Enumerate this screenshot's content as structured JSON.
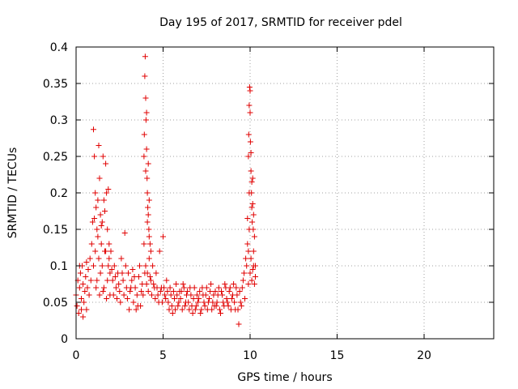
{
  "chart_data": {
    "type": "scatter",
    "title": "Day 195 of 2017, SRMTID for receiver pdel",
    "xlabel": "GPS time / hours",
    "ylabel": "SRMTID / TECUs",
    "xlim": [
      0,
      24
    ],
    "ylim": [
      0,
      0.4
    ],
    "x_ticks": [
      0,
      5,
      10,
      15,
      20
    ],
    "x_tick_labels": [
      "0",
      "5",
      "10",
      "15",
      "20"
    ],
    "y_ticks": [
      0,
      0.05,
      0.1,
      0.15,
      0.2,
      0.25,
      0.3,
      0.35,
      0.4
    ],
    "y_tick_labels": [
      "0",
      "0.05",
      "0.1",
      "0.15",
      "0.2",
      "0.25",
      "0.3",
      "0.35",
      "0.4"
    ],
    "grid": true,
    "marker": "plus",
    "color": "#e00000",
    "series": [
      {
        "name": "SRMTID",
        "points": [
          [
            0.0,
            0.06
          ],
          [
            0.05,
            0.045
          ],
          [
            0.1,
            0.08
          ],
          [
            0.15,
            0.035
          ],
          [
            0.2,
            0.07
          ],
          [
            0.25,
            0.09
          ],
          [
            0.3,
            0.055
          ],
          [
            0.35,
            0.1
          ],
          [
            0.4,
            0.075
          ],
          [
            0.45,
            0.05
          ],
          [
            0.5,
            0.065
          ],
          [
            0.55,
            0.085
          ],
          [
            0.6,
            0.04
          ],
          [
            0.65,
            0.07
          ],
          [
            0.7,
            0.095
          ],
          [
            0.75,
            0.06
          ],
          [
            0.8,
            0.11
          ],
          [
            0.85,
            0.08
          ],
          [
            0.9,
            0.13
          ],
          [
            0.95,
            0.16
          ],
          [
            0.4,
            0.03
          ],
          [
            0.6,
            0.105
          ],
          [
            0.3,
            0.04
          ],
          [
            0.2,
            0.1
          ],
          [
            1.0,
            0.287
          ],
          [
            1.05,
            0.25
          ],
          [
            1.1,
            0.2
          ],
          [
            1.15,
            0.18
          ],
          [
            1.2,
            0.15
          ],
          [
            1.25,
            0.14
          ],
          [
            1.3,
            0.265
          ],
          [
            1.35,
            0.22
          ],
          [
            1.4,
            0.17
          ],
          [
            1.45,
            0.13
          ],
          [
            1.5,
            0.16
          ],
          [
            1.55,
            0.25
          ],
          [
            1.6,
            0.19
          ],
          [
            1.65,
            0.12
          ],
          [
            1.7,
            0.24
          ],
          [
            1.75,
            0.2
          ],
          [
            1.8,
            0.15
          ],
          [
            1.85,
            0.1
          ],
          [
            1.9,
            0.13
          ],
          [
            1.95,
            0.09
          ],
          [
            1.0,
            0.1
          ],
          [
            1.1,
            0.12
          ],
          [
            1.2,
            0.08
          ],
          [
            1.3,
            0.11
          ],
          [
            1.4,
            0.09
          ],
          [
            1.5,
            0.1
          ],
          [
            1.6,
            0.07
          ],
          [
            1.7,
            0.12
          ],
          [
            1.8,
            0.08
          ],
          [
            1.9,
            0.11
          ],
          [
            1.05,
            0.165
          ],
          [
            1.25,
            0.19
          ],
          [
            1.45,
            0.155
          ],
          [
            1.65,
            0.175
          ],
          [
            1.85,
            0.205
          ],
          [
            1.15,
            0.07
          ],
          [
            1.35,
            0.06
          ],
          [
            1.55,
            0.065
          ],
          [
            1.75,
            0.055
          ],
          [
            1.95,
            0.06
          ],
          [
            2.0,
            0.12
          ],
          [
            2.1,
            0.08
          ],
          [
            2.2,
            0.1
          ],
          [
            2.3,
            0.07
          ],
          [
            2.4,
            0.09
          ],
          [
            2.5,
            0.065
          ],
          [
            2.6,
            0.11
          ],
          [
            2.7,
            0.08
          ],
          [
            2.8,
            0.145
          ],
          [
            2.9,
            0.07
          ],
          [
            2.05,
            0.095
          ],
          [
            2.15,
            0.06
          ],
          [
            2.25,
            0.085
          ],
          [
            2.35,
            0.055
          ],
          [
            2.45,
            0.075
          ],
          [
            2.55,
            0.05
          ],
          [
            2.65,
            0.09
          ],
          [
            2.75,
            0.06
          ],
          [
            2.85,
            0.1
          ],
          [
            2.95,
            0.055
          ],
          [
            3.0,
            0.09
          ],
          [
            3.1,
            0.065
          ],
          [
            3.2,
            0.08
          ],
          [
            3.3,
            0.05
          ],
          [
            3.4,
            0.07
          ],
          [
            3.5,
            0.06
          ],
          [
            3.6,
            0.085
          ],
          [
            3.7,
            0.045
          ],
          [
            3.8,
            0.075
          ],
          [
            3.9,
            0.13
          ],
          [
            3.05,
            0.04
          ],
          [
            3.25,
            0.095
          ],
          [
            3.45,
            0.04
          ],
          [
            3.65,
            0.1
          ],
          [
            3.85,
            0.06
          ],
          [
            3.15,
            0.07
          ],
          [
            3.35,
            0.085
          ],
          [
            3.55,
            0.045
          ],
          [
            3.75,
            0.065
          ],
          [
            3.95,
            0.09
          ],
          [
            3.9,
            0.25
          ],
          [
            3.92,
            0.28
          ],
          [
            3.95,
            0.36
          ],
          [
            3.97,
            0.387
          ],
          [
            4.0,
            0.33
          ],
          [
            4.02,
            0.3
          ],
          [
            4.05,
            0.26
          ],
          [
            4.08,
            0.22
          ],
          [
            4.1,
            0.2
          ],
          [
            4.12,
            0.18
          ],
          [
            4.15,
            0.17
          ],
          [
            4.18,
            0.15
          ],
          [
            4.2,
            0.19
          ],
          [
            4.05,
            0.31
          ],
          [
            4.0,
            0.23
          ],
          [
            4.1,
            0.16
          ],
          [
            4.15,
            0.24
          ],
          [
            4.2,
            0.14
          ],
          [
            4.25,
            0.13
          ],
          [
            4.3,
            0.12
          ],
          [
            4.0,
            0.1
          ],
          [
            4.1,
            0.09
          ],
          [
            4.2,
            0.11
          ],
          [
            4.3,
            0.08
          ],
          [
            4.4,
            0.1
          ],
          [
            4.5,
            0.07
          ],
          [
            4.6,
            0.09
          ],
          [
            4.7,
            0.06
          ],
          [
            4.8,
            0.12
          ],
          [
            4.9,
            0.07
          ],
          [
            4.05,
            0.075
          ],
          [
            4.15,
            0.065
          ],
          [
            4.25,
            0.085
          ],
          [
            4.35,
            0.06
          ],
          [
            4.45,
            0.075
          ],
          [
            4.55,
            0.055
          ],
          [
            4.65,
            0.07
          ],
          [
            4.75,
            0.05
          ],
          [
            4.85,
            0.065
          ],
          [
            4.95,
            0.05
          ],
          [
            5.0,
            0.14
          ],
          [
            5.1,
            0.06
          ],
          [
            5.2,
            0.08
          ],
          [
            5.3,
            0.05
          ],
          [
            5.4,
            0.07
          ],
          [
            5.5,
            0.045
          ],
          [
            5.6,
            0.065
          ],
          [
            5.7,
            0.04
          ],
          [
            5.8,
            0.06
          ],
          [
            5.9,
            0.05
          ],
          [
            5.05,
            0.07
          ],
          [
            5.15,
            0.055
          ],
          [
            5.25,
            0.065
          ],
          [
            5.35,
            0.04
          ],
          [
            5.45,
            0.06
          ],
          [
            5.55,
            0.035
          ],
          [
            5.65,
            0.055
          ],
          [
            5.75,
            0.075
          ],
          [
            5.85,
            0.045
          ],
          [
            5.95,
            0.065
          ],
          [
            6.0,
            0.055
          ],
          [
            6.1,
            0.04
          ],
          [
            6.2,
            0.07
          ],
          [
            6.3,
            0.05
          ],
          [
            6.4,
            0.065
          ],
          [
            6.5,
            0.04
          ],
          [
            6.6,
            0.06
          ],
          [
            6.7,
            0.035
          ],
          [
            6.8,
            0.07
          ],
          [
            6.9,
            0.045
          ],
          [
            6.05,
            0.065
          ],
          [
            6.15,
            0.075
          ],
          [
            6.25,
            0.045
          ],
          [
            6.35,
            0.06
          ],
          [
            6.45,
            0.05
          ],
          [
            6.55,
            0.07
          ],
          [
            6.65,
            0.045
          ],
          [
            6.75,
            0.055
          ],
          [
            6.85,
            0.04
          ],
          [
            6.95,
            0.06
          ],
          [
            7.0,
            0.05
          ],
          [
            7.1,
            0.065
          ],
          [
            7.2,
            0.04
          ],
          [
            7.3,
            0.06
          ],
          [
            7.4,
            0.045
          ],
          [
            7.5,
            0.07
          ],
          [
            7.6,
            0.05
          ],
          [
            7.7,
            0.065
          ],
          [
            7.8,
            0.04
          ],
          [
            7.9,
            0.06
          ],
          [
            7.05,
            0.055
          ],
          [
            7.15,
            0.035
          ],
          [
            7.25,
            0.07
          ],
          [
            7.35,
            0.05
          ],
          [
            7.45,
            0.06
          ],
          [
            7.55,
            0.04
          ],
          [
            7.65,
            0.055
          ],
          [
            7.75,
            0.075
          ],
          [
            7.85,
            0.05
          ],
          [
            7.95,
            0.045
          ],
          [
            8.0,
            0.065
          ],
          [
            8.1,
            0.05
          ],
          [
            8.2,
            0.07
          ],
          [
            8.3,
            0.035
          ],
          [
            8.4,
            0.06
          ],
          [
            8.5,
            0.045
          ],
          [
            8.6,
            0.07
          ],
          [
            8.7,
            0.05
          ],
          [
            8.8,
            0.065
          ],
          [
            8.9,
            0.04
          ],
          [
            8.05,
            0.045
          ],
          [
            8.15,
            0.06
          ],
          [
            8.25,
            0.04
          ],
          [
            8.35,
            0.065
          ],
          [
            8.45,
            0.05
          ],
          [
            8.55,
            0.075
          ],
          [
            8.65,
            0.055
          ],
          [
            8.75,
            0.045
          ],
          [
            8.85,
            0.07
          ],
          [
            8.95,
            0.055
          ],
          [
            9.0,
            0.06
          ],
          [
            9.1,
            0.05
          ],
          [
            9.2,
            0.07
          ],
          [
            9.3,
            0.04
          ],
          [
            9.4,
            0.065
          ],
          [
            9.5,
            0.045
          ],
          [
            9.6,
            0.08
          ],
          [
            9.7,
            0.055
          ],
          [
            9.8,
            0.1
          ],
          [
            9.9,
            0.075
          ],
          [
            9.05,
            0.075
          ],
          [
            9.15,
            0.04
          ],
          [
            9.25,
            0.06
          ],
          [
            9.35,
            0.02
          ],
          [
            9.45,
            0.05
          ],
          [
            9.55,
            0.07
          ],
          [
            9.65,
            0.09
          ],
          [
            9.75,
            0.11
          ],
          [
            9.85,
            0.13
          ],
          [
            9.95,
            0.15
          ],
          [
            9.9,
            0.25
          ],
          [
            9.92,
            0.28
          ],
          [
            9.95,
            0.32
          ],
          [
            9.97,
            0.345
          ],
          [
            10.0,
            0.31
          ],
          [
            10.02,
            0.27
          ],
          [
            10.05,
            0.23
          ],
          [
            10.08,
            0.2
          ],
          [
            10.1,
            0.18
          ],
          [
            10.12,
            0.16
          ],
          [
            10.15,
            0.22
          ],
          [
            10.18,
            0.15
          ],
          [
            10.2,
            0.12
          ],
          [
            10.05,
            0.255
          ],
          [
            10.0,
            0.34
          ],
          [
            10.1,
            0.215
          ],
          [
            10.15,
            0.185
          ],
          [
            10.2,
            0.17
          ],
          [
            10.25,
            0.14
          ],
          [
            10.3,
            0.1
          ],
          [
            10.0,
            0.09
          ],
          [
            10.1,
            0.08
          ],
          [
            10.2,
            0.1
          ],
          [
            10.3,
            0.085
          ],
          [
            10.05,
            0.11
          ],
          [
            10.15,
            0.095
          ],
          [
            10.25,
            0.075
          ],
          [
            9.85,
            0.165
          ],
          [
            9.9,
            0.12
          ],
          [
            9.95,
            0.2
          ]
        ]
      }
    ]
  }
}
